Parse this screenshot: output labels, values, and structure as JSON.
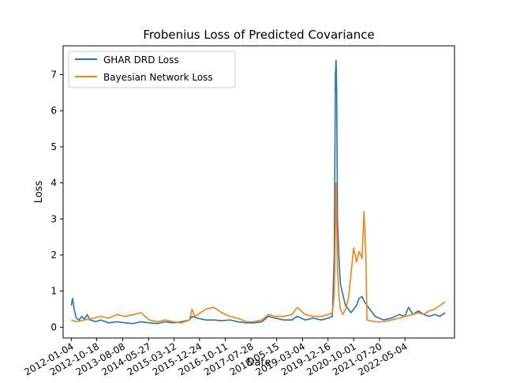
{
  "chart_data": {
    "type": "line",
    "title": "Frobenius Loss of Predicted Covariance",
    "xlabel": "Date",
    "ylabel": "Loss",
    "x_range": [
      "2011-10-04",
      "2023-11-15"
    ],
    "ylim": [
      -0.3,
      7.8
    ],
    "x_tick_labels": [
      "2012-01-04",
      "2012-10-18",
      "2013-08-08",
      "2014-05-27",
      "2015-03-12",
      "2015-12-24",
      "2016-10-11",
      "2017-07-28",
      "2018-05-15",
      "2019-03-04",
      "2019-12-16",
      "2020-10-01",
      "2021-07-20",
      "2022-05-04"
    ],
    "y_ticks": [
      0,
      1,
      2,
      3,
      4,
      5,
      6,
      7
    ],
    "grid": false,
    "legend_position": "upper-left",
    "colors": {
      "ghar": "#1f77b4",
      "bayes": "#ff7f0e"
    },
    "series": [
      {
        "name": "GHAR DRD Loss",
        "color": "#1f77b4",
        "points": [
          [
            "2012-01-04",
            0.6
          ],
          [
            "2012-01-18",
            0.8
          ],
          [
            "2012-02-06",
            0.5
          ],
          [
            "2012-03-01",
            0.25
          ],
          [
            "2012-04-02",
            0.2
          ],
          [
            "2012-05-01",
            0.3
          ],
          [
            "2012-06-01",
            0.22
          ],
          [
            "2012-07-02",
            0.35
          ],
          [
            "2012-08-01",
            0.2
          ],
          [
            "2012-09-04",
            0.18
          ],
          [
            "2012-10-01",
            0.15
          ],
          [
            "2012-12-03",
            0.2
          ],
          [
            "2013-03-01",
            0.12
          ],
          [
            "2013-06-03",
            0.15
          ],
          [
            "2013-09-03",
            0.12
          ],
          [
            "2013-12-02",
            0.1
          ],
          [
            "2014-03-03",
            0.15
          ],
          [
            "2014-06-02",
            0.12
          ],
          [
            "2014-09-02",
            0.1
          ],
          [
            "2014-12-01",
            0.15
          ],
          [
            "2015-03-02",
            0.12
          ],
          [
            "2015-06-01",
            0.15
          ],
          [
            "2015-09-01",
            0.2
          ],
          [
            "2015-10-01",
            0.3
          ],
          [
            "2015-12-01",
            0.25
          ],
          [
            "2016-03-01",
            0.2
          ],
          [
            "2016-06-01",
            0.2
          ],
          [
            "2016-09-01",
            0.18
          ],
          [
            "2016-12-01",
            0.2
          ],
          [
            "2017-03-01",
            0.15
          ],
          [
            "2017-06-01",
            0.12
          ],
          [
            "2017-09-01",
            0.12
          ],
          [
            "2017-12-01",
            0.15
          ],
          [
            "2018-02-06",
            0.3
          ],
          [
            "2018-05-01",
            0.25
          ],
          [
            "2018-08-01",
            0.2
          ],
          [
            "2018-11-01",
            0.2
          ],
          [
            "2019-01-02",
            0.3
          ],
          [
            "2019-04-01",
            0.2
          ],
          [
            "2019-07-01",
            0.25
          ],
          [
            "2019-10-01",
            0.2
          ],
          [
            "2019-12-16",
            0.25
          ],
          [
            "2020-02-03",
            0.3
          ],
          [
            "2020-02-24",
            2.0
          ],
          [
            "2020-03-09",
            7.0
          ],
          [
            "2020-03-16",
            7.4
          ],
          [
            "2020-03-23",
            6.5
          ],
          [
            "2020-04-01",
            3.0
          ],
          [
            "2020-04-20",
            1.8
          ],
          [
            "2020-05-04",
            1.2
          ],
          [
            "2020-06-01",
            0.9
          ],
          [
            "2020-07-01",
            0.6
          ],
          [
            "2020-08-03",
            0.5
          ],
          [
            "2020-09-01",
            0.4
          ],
          [
            "2020-10-01",
            0.5
          ],
          [
            "2020-11-02",
            0.6
          ],
          [
            "2020-12-01",
            0.8
          ],
          [
            "2021-01-04",
            0.85
          ],
          [
            "2021-02-01",
            0.7
          ],
          [
            "2021-03-01",
            0.6
          ],
          [
            "2021-04-01",
            0.5
          ],
          [
            "2021-06-01",
            0.3
          ],
          [
            "2021-09-01",
            0.2
          ],
          [
            "2021-12-01",
            0.25
          ],
          [
            "2022-03-01",
            0.35
          ],
          [
            "2022-05-02",
            0.3
          ],
          [
            "2022-06-13",
            0.55
          ],
          [
            "2022-08-01",
            0.35
          ],
          [
            "2022-10-03",
            0.45
          ],
          [
            "2022-12-01",
            0.35
          ],
          [
            "2023-02-01",
            0.3
          ],
          [
            "2023-04-03",
            0.35
          ],
          [
            "2023-06-01",
            0.3
          ],
          [
            "2023-08-01",
            0.4
          ]
        ]
      },
      {
        "name": "Bayesian Network Loss",
        "color": "#ff7f0e",
        "points": [
          [
            "2012-01-04",
            0.2
          ],
          [
            "2012-03-01",
            0.15
          ],
          [
            "2012-06-01",
            0.2
          ],
          [
            "2012-09-04",
            0.25
          ],
          [
            "2012-12-03",
            0.3
          ],
          [
            "2013-03-01",
            0.25
          ],
          [
            "2013-06-03",
            0.35
          ],
          [
            "2013-09-03",
            0.3
          ],
          [
            "2013-12-02",
            0.35
          ],
          [
            "2014-03-03",
            0.4
          ],
          [
            "2014-06-02",
            0.2
          ],
          [
            "2014-09-02",
            0.15
          ],
          [
            "2014-12-01",
            0.2
          ],
          [
            "2015-03-02",
            0.15
          ],
          [
            "2015-06-01",
            0.12
          ],
          [
            "2015-09-01",
            0.2
          ],
          [
            "2015-10-01",
            0.5
          ],
          [
            "2015-11-02",
            0.3
          ],
          [
            "2016-01-04",
            0.4
          ],
          [
            "2016-03-01",
            0.5
          ],
          [
            "2016-06-01",
            0.55
          ],
          [
            "2016-09-01",
            0.4
          ],
          [
            "2016-12-01",
            0.3
          ],
          [
            "2017-03-01",
            0.25
          ],
          [
            "2017-06-01",
            0.15
          ],
          [
            "2017-09-01",
            0.15
          ],
          [
            "2017-12-01",
            0.2
          ],
          [
            "2018-02-06",
            0.35
          ],
          [
            "2018-05-01",
            0.3
          ],
          [
            "2018-08-01",
            0.3
          ],
          [
            "2018-11-01",
            0.35
          ],
          [
            "2019-01-02",
            0.55
          ],
          [
            "2019-04-01",
            0.35
          ],
          [
            "2019-07-01",
            0.3
          ],
          [
            "2019-10-01",
            0.3
          ],
          [
            "2019-12-16",
            0.35
          ],
          [
            "2020-02-03",
            0.4
          ],
          [
            "2020-02-24",
            0.9
          ],
          [
            "2020-03-09",
            2.8
          ],
          [
            "2020-03-16",
            4.0
          ],
          [
            "2020-03-23",
            3.0
          ],
          [
            "2020-04-01",
            1.6
          ],
          [
            "2020-04-20",
            0.8
          ],
          [
            "2020-05-04",
            0.5
          ],
          [
            "2020-06-01",
            0.35
          ],
          [
            "2020-07-01",
            0.5
          ],
          [
            "2020-08-03",
            0.8
          ],
          [
            "2020-09-01",
            1.5
          ],
          [
            "2020-10-01",
            2.2
          ],
          [
            "2020-11-02",
            1.8
          ],
          [
            "2020-12-01",
            2.1
          ],
          [
            "2021-01-04",
            1.9
          ],
          [
            "2021-01-25",
            3.2
          ],
          [
            "2021-02-15",
            2.0
          ],
          [
            "2021-03-01",
            0.2
          ],
          [
            "2021-06-01",
            0.15
          ],
          [
            "2021-09-01",
            0.15
          ],
          [
            "2021-12-01",
            0.2
          ],
          [
            "2022-03-01",
            0.25
          ],
          [
            "2022-05-02",
            0.3
          ],
          [
            "2022-08-01",
            0.35
          ],
          [
            "2022-10-03",
            0.4
          ],
          [
            "2022-12-01",
            0.35
          ],
          [
            "2023-02-01",
            0.45
          ],
          [
            "2023-04-03",
            0.5
          ],
          [
            "2023-06-01",
            0.6
          ],
          [
            "2023-08-01",
            0.7
          ]
        ]
      }
    ]
  }
}
